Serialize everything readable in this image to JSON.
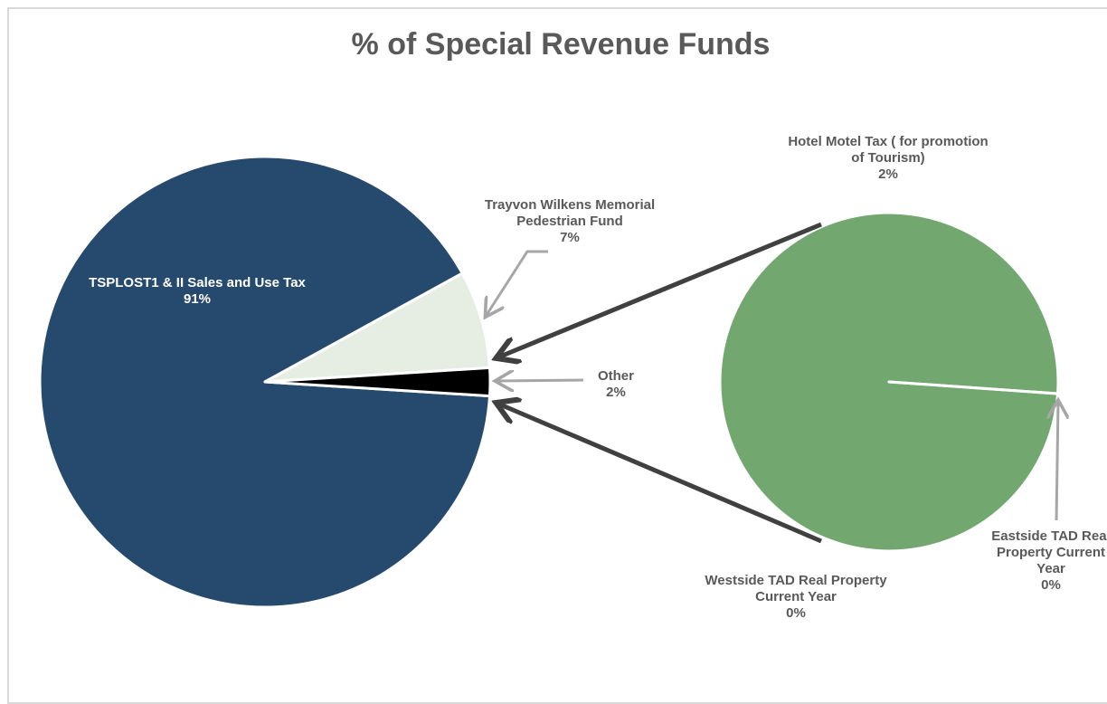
{
  "chart_data": [
    {
      "type": "pie",
      "title": "% of Special Revenue Funds",
      "categories": [
        "TSPLOST1 & II Sales and Use Tax",
        "Trayvon Wilkens Memorial Pedestrian Fund",
        "Other"
      ],
      "values": [
        91,
        7,
        2
      ],
      "value_labels": [
        "91%",
        "7%",
        "2%"
      ],
      "colors": [
        "#264a6e",
        "#e6eee4",
        "#000000"
      ]
    },
    {
      "type": "pie",
      "categories": [
        "Hotel Motel Tax ( for promotion of Tourism)",
        "Westside TAD Real Property Current Year",
        "Eastside TAD Real Property Current Year"
      ],
      "values": [
        2,
        0,
        0
      ],
      "value_labels": [
        "2%",
        "0%",
        "0%"
      ],
      "colors": [
        "#72a86f",
        "#72a86f",
        "#72a86f"
      ]
    }
  ]
}
